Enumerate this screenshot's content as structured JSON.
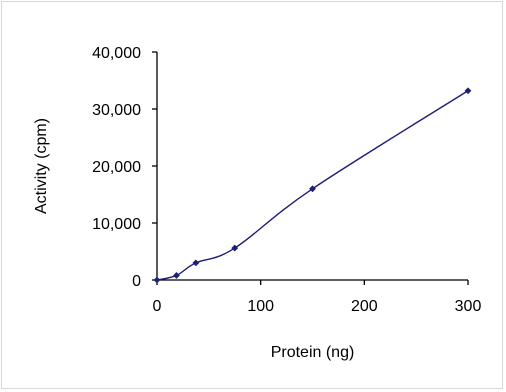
{
  "chart_data": {
    "type": "line",
    "title": "",
    "xlabel": "Protein (ng)",
    "ylabel": "Activity (cpm)",
    "x_ticks": [
      "0",
      "100",
      "200",
      "300"
    ],
    "y_ticks": [
      "0",
      "10,000",
      "20,000",
      "30,000",
      "40,000"
    ],
    "xlim": [
      0,
      300
    ],
    "ylim": [
      0,
      40000
    ],
    "grid": false,
    "series": [
      {
        "x": [
          0,
          18.75,
          37.5,
          75,
          150,
          300
        ],
        "y": [
          0,
          800,
          3000,
          5600,
          16000,
          33200
        ],
        "color": "#1f1f7a",
        "marker": "diamond"
      }
    ]
  }
}
